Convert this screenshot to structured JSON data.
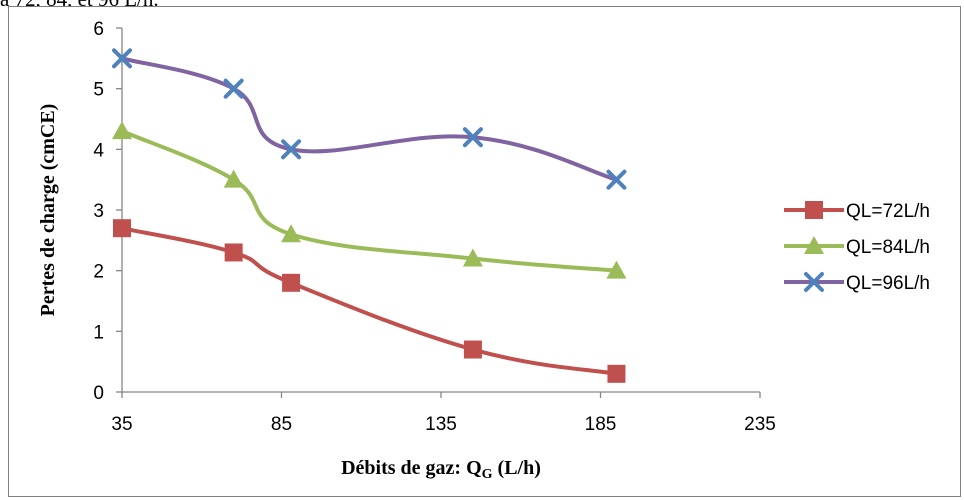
{
  "caption_fragment": "à 72, 84, et 96 L/h.",
  "chart_data": {
    "type": "line",
    "smooth": true,
    "xlabel": "Débits de gaz: Q",
    "xlabel_subscript": "G",
    "xlabel_suffix": " (L/h)",
    "ylabel": "Pertes de charge (cmCE)",
    "xlim": [
      35,
      235
    ],
    "ylim": [
      0,
      6
    ],
    "x_ticks": [
      35,
      85,
      135,
      185,
      235
    ],
    "y_ticks": [
      0,
      1,
      2,
      3,
      4,
      5,
      6
    ],
    "grid": false,
    "legend_position": "right",
    "series": [
      {
        "name": "QL=72L/h",
        "marker": "square",
        "color": "#c0504d",
        "marker_color": "#c0504d",
        "x": [
          35,
          70,
          88,
          145,
          190
        ],
        "y": [
          2.7,
          2.3,
          1.8,
          0.7,
          0.3
        ]
      },
      {
        "name": "QL=84L/h",
        "marker": "triangle",
        "color": "#9bbb59",
        "marker_color": "#9bbb59",
        "x": [
          35,
          70,
          88,
          145,
          190
        ],
        "y": [
          4.3,
          3.5,
          2.6,
          2.2,
          2.0
        ]
      },
      {
        "name": "QL=96L/h",
        "marker": "x",
        "color": "#8064a2",
        "marker_color": "#4f81bd",
        "x": [
          35,
          70,
          88,
          145,
          190
        ],
        "y": [
          5.5,
          5.0,
          4.0,
          4.2,
          3.5
        ]
      }
    ]
  }
}
